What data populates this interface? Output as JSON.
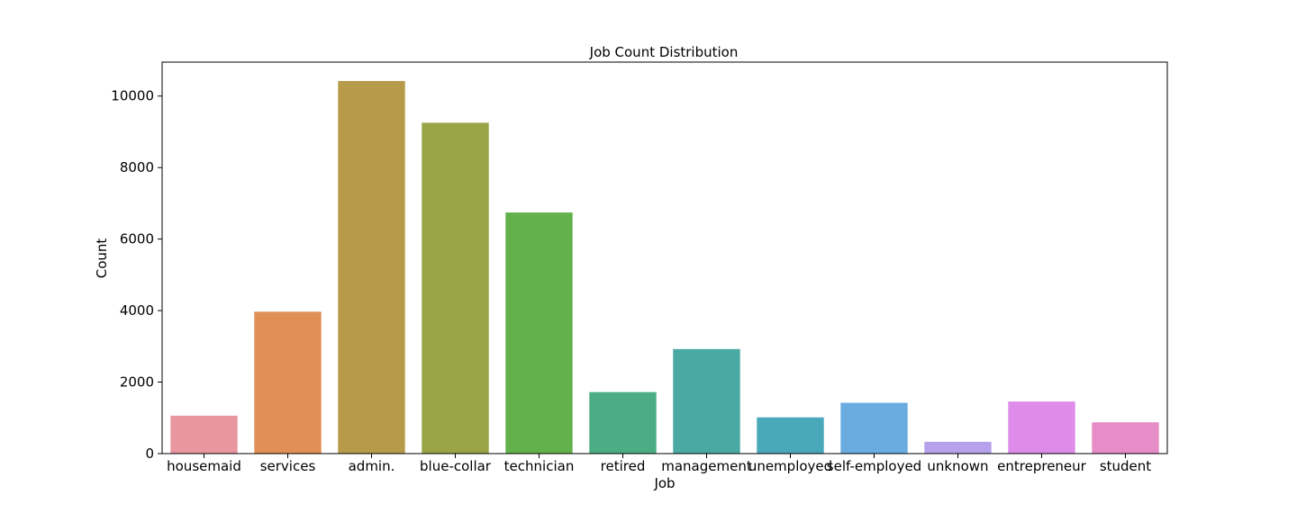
{
  "chart_data": {
    "type": "bar",
    "title": "Job Count Distribution",
    "xlabel": "Job",
    "ylabel": "Count",
    "categories": [
      "housemaid",
      "services",
      "admin.",
      "blue-collar",
      "technician",
      "retired",
      "management",
      "unemployed",
      "self-employed",
      "unknown",
      "entrepreneur",
      "student"
    ],
    "values": [
      1060,
      3969,
      10422,
      9254,
      6743,
      1720,
      2924,
      1014,
      1421,
      330,
      1456,
      875
    ],
    "colors": [
      "#e8969f",
      "#e08f55",
      "#b89b4a",
      "#98a446",
      "#62b14b",
      "#4aad83",
      "#4aa9a2",
      "#4aa8bb",
      "#6aace0",
      "#b6a2ec",
      "#de8bea",
      "#e68cc6"
    ],
    "ylim": [
      0,
      10950
    ],
    "yticks": [
      0,
      2000,
      4000,
      6000,
      8000,
      10000
    ],
    "ytick_labels": [
      "0",
      "2000",
      "4000",
      "6000",
      "8000",
      "10000"
    ],
    "grid": false,
    "legend": "none"
  }
}
